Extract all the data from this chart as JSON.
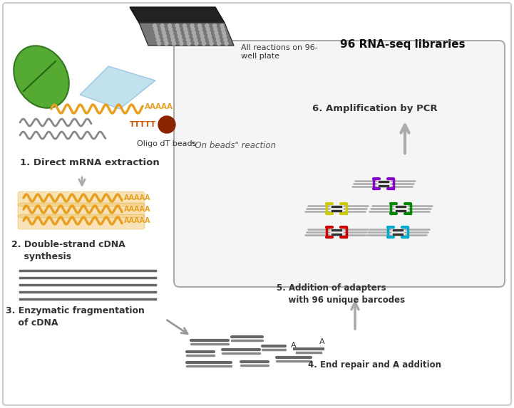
{
  "bg_color": "#ffffff",
  "border_color": "#cccccc",
  "text_color": "#333333",
  "step1_label": "1. Direct mRNA extraction",
  "step2_label": "2. Double-strand cDNA\n    synthesis",
  "step3_label": "3. Enzymatic fragmentation\n    of cDNA",
  "step4_label": "4. End repair and A addition",
  "step5_label": "5. Addition of adapters\n    with 96 unique barcodes",
  "step6_label": "6. Amplification by PCR",
  "top_label": "96 RNA-seq libraries",
  "plate_label": "All reactions on 96-\nwell plate",
  "beads_label": "Oligo dT beads",
  "box_label": "\"On beads\" reaction",
  "wave_color_gold": "#e8a020",
  "wave_color_gray": "#888888",
  "cdna_color": "#666666",
  "arrow_color": "#aaaaaa",
  "adapter_colors": [
    "#8800cc",
    "#cccc00",
    "#008800",
    "#cc0000",
    "#00aacc"
  ],
  "box_bg": "#f5f5f5",
  "box_border": "#aaaaaa"
}
